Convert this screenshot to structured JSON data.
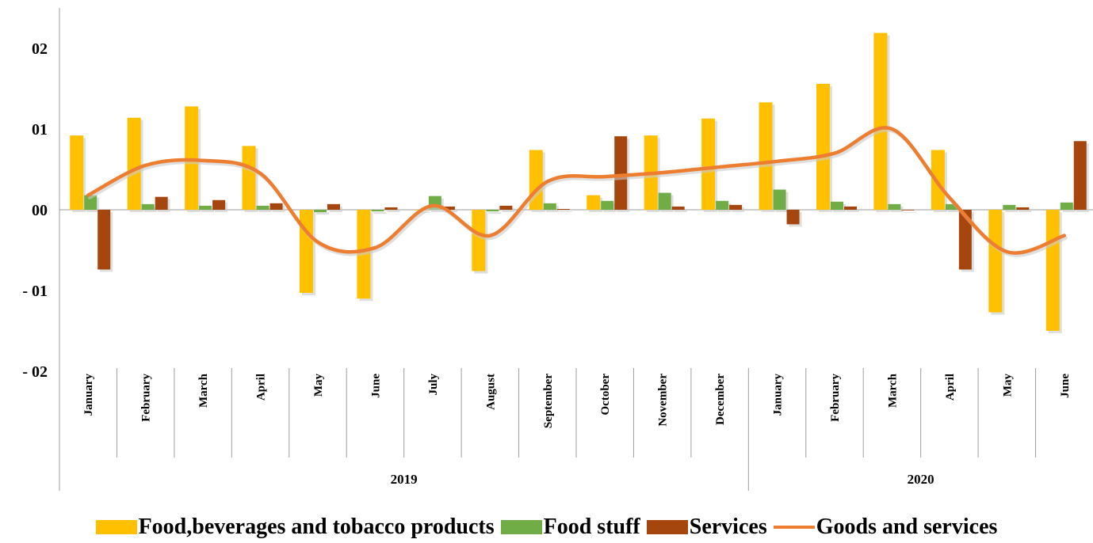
{
  "chart_data": {
    "type": "bar",
    "categories": [
      "January",
      "February",
      "March",
      "April",
      "May",
      "June",
      "July",
      "August",
      "September",
      "October",
      "November",
      "December",
      "January",
      "February",
      "March",
      "April",
      "May",
      "June"
    ],
    "groups": [
      {
        "label": "2019",
        "count": 12
      },
      {
        "label": "2020",
        "count": 6
      }
    ],
    "ylim": [
      -0.02,
      0.025
    ],
    "yticks": [
      -0.02,
      -0.01,
      0.0,
      0.01,
      0.02
    ],
    "ytick_labels": [
      "- 02",
      "- 01",
      "00",
      "01",
      "02"
    ],
    "series": [
      {
        "name": "Food,beverages and tobacco products",
        "type": "bar",
        "color": "#FFC000",
        "values": [
          0.0092,
          0.0114,
          0.0128,
          0.0079,
          -0.0103,
          -0.011,
          0.0,
          -0.0076,
          0.0074,
          0.0018,
          0.0092,
          0.0113,
          0.0133,
          0.0156,
          0.0219,
          0.0074,
          -0.0127,
          -0.015
        ]
      },
      {
        "name": "Food stuff",
        "type": "bar",
        "color": "#70AD47",
        "values": [
          0.0018,
          0.0007,
          0.0005,
          0.0005,
          -0.0003,
          -0.0002,
          0.0017,
          -0.0002,
          0.0008,
          0.0011,
          0.0021,
          0.0011,
          0.0025,
          0.001,
          0.0007,
          0.0007,
          0.0006,
          0.0009
        ]
      },
      {
        "name": "Services",
        "type": "bar",
        "color": "#A5460F",
        "values": [
          -0.0074,
          0.0016,
          0.0012,
          0.0008,
          0.0007,
          0.0003,
          0.0004,
          0.0005,
          0.0001,
          0.0091,
          0.0004,
          0.0006,
          -0.0018,
          0.0004,
          0.0,
          -0.0074,
          0.0003,
          0.0085
        ]
      },
      {
        "name": "Goods and services",
        "type": "line",
        "color": "#ED7D31",
        "values": [
          0.0018,
          0.0055,
          0.0061,
          0.0045,
          -0.004,
          -0.0047,
          0.0005,
          -0.0032,
          0.0035,
          0.0041,
          0.0046,
          0.0053,
          0.006,
          0.007,
          0.01,
          0.0015,
          -0.0052,
          -0.0032
        ]
      }
    ]
  }
}
